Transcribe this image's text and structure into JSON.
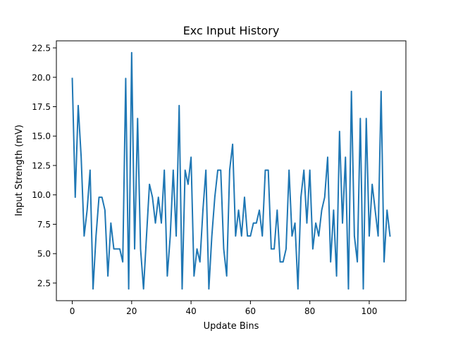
{
  "chart_data": {
    "type": "line",
    "title": "Exc Input History",
    "xlabel": "Update Bins",
    "ylabel": "Input Strength (mV)",
    "xlim": [
      -5.35,
      112.35
    ],
    "ylim": [
      1.0,
      23.1
    ],
    "xticks": [
      0,
      20,
      40,
      60,
      80,
      100
    ],
    "yticks": [
      2.5,
      5.0,
      7.5,
      10.0,
      12.5,
      15.0,
      17.5,
      20.0,
      22.5
    ],
    "grid": false,
    "legend": "none",
    "series": [
      {
        "color": "#1f77b4",
        "x": [
          0,
          1,
          2,
          3,
          4,
          5,
          6,
          7,
          8,
          9,
          10,
          11,
          12,
          13,
          14,
          15,
          16,
          17,
          18,
          19,
          20,
          21,
          22,
          23,
          24,
          25,
          26,
          27,
          28,
          29,
          30,
          31,
          32,
          33,
          34,
          35,
          36,
          37,
          38,
          39,
          40,
          41,
          42,
          43,
          44,
          45,
          46,
          47,
          48,
          49,
          50,
          51,
          52,
          53,
          54,
          55,
          56,
          57,
          58,
          59,
          60,
          61,
          62,
          63,
          64,
          65,
          66,
          67,
          68,
          69,
          70,
          71,
          72,
          73,
          74,
          75,
          76,
          77,
          78,
          79,
          80,
          81,
          82,
          83,
          84,
          85,
          86,
          87,
          88,
          89,
          90,
          91,
          92,
          93,
          94,
          95,
          96,
          97,
          98,
          99,
          100,
          101,
          102,
          103,
          104,
          105,
          106,
          107
        ],
        "y": [
          19.9,
          9.8,
          17.6,
          13.2,
          6.5,
          8.7,
          12.1,
          2.0,
          6.5,
          9.8,
          9.8,
          8.7,
          3.1,
          7.6,
          5.4,
          5.4,
          5.4,
          4.3,
          19.9,
          2.0,
          22.1,
          5.4,
          16.5,
          5.4,
          2.0,
          6.5,
          10.9,
          9.8,
          7.6,
          9.8,
          7.6,
          12.1,
          3.1,
          6.5,
          12.1,
          6.5,
          17.6,
          2.0,
          12.1,
          10.9,
          13.2,
          3.1,
          5.4,
          4.3,
          8.7,
          12.1,
          2.0,
          6.5,
          9.8,
          12.1,
          12.1,
          5.4,
          3.1,
          12.1,
          14.3,
          6.5,
          8.7,
          6.5,
          9.8,
          6.5,
          6.5,
          7.6,
          7.6,
          8.7,
          6.5,
          12.1,
          12.1,
          5.4,
          5.4,
          8.7,
          4.3,
          4.3,
          5.4,
          12.1,
          6.5,
          7.6,
          2.0,
          9.8,
          12.1,
          7.6,
          12.1,
          5.4,
          7.6,
          6.5,
          8.7,
          9.8,
          13.2,
          4.3,
          8.7,
          3.1,
          15.4,
          7.6,
          13.2,
          2.0,
          18.8,
          6.5,
          4.3,
          16.5,
          2.0,
          16.5,
          6.5,
          10.9,
          8.7,
          6.5,
          18.8,
          4.3,
          8.7,
          6.5
        ]
      }
    ]
  }
}
